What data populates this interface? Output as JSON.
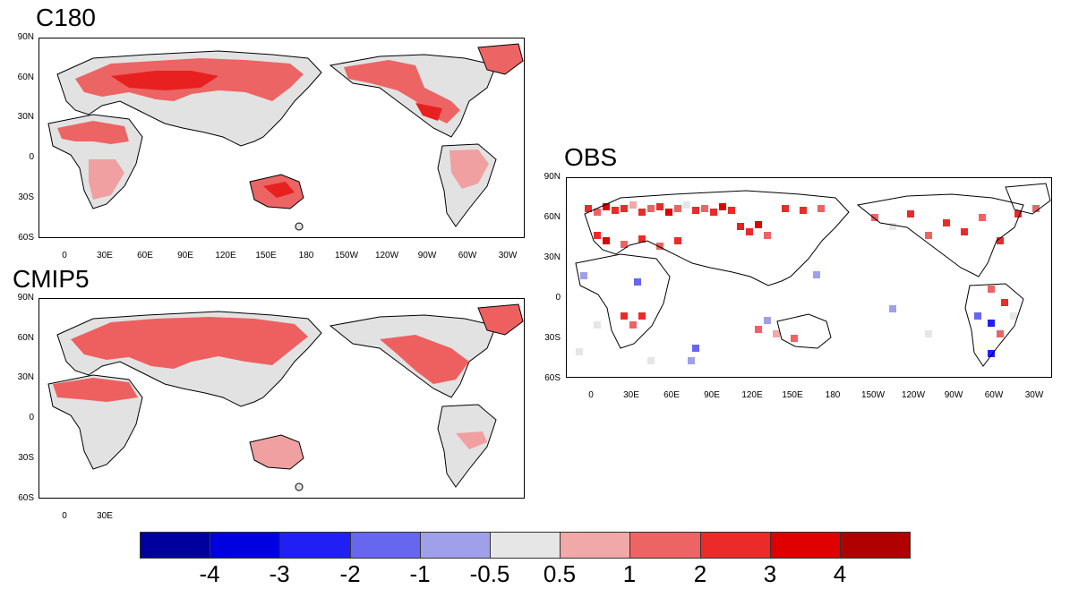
{
  "panels": {
    "c180": {
      "title": "C180"
    },
    "cmip5": {
      "title": "CMIP5"
    },
    "obs": {
      "title": "OBS"
    }
  },
  "lat_labels": [
    "90N",
    "60N",
    "30N",
    "0",
    "30S",
    "60S"
  ],
  "lon_labels": [
    "0",
    "30E",
    "60E",
    "90E",
    "120E",
    "150E",
    "180",
    "150W",
    "120W",
    "90W",
    "60W",
    "30W"
  ],
  "colorbar": {
    "colors": [
      "#00009e",
      "#0000e0",
      "#2020f4",
      "#6666ee",
      "#a0a0ea",
      "#e6e6e6",
      "#f0a8a8",
      "#ec6464",
      "#ec2a2a",
      "#e00000",
      "#b00000"
    ],
    "labels": [
      "-4",
      "-3",
      "-2",
      "-1",
      "-0.5",
      "0.5",
      "1",
      "2",
      "3",
      "4"
    ]
  },
  "colors": {
    "land_gray": "#e2e2e2",
    "light_red": "#f0a0a0",
    "mid_red": "#ee6060",
    "strong_red": "#e82020",
    "coast": "#000000"
  }
}
